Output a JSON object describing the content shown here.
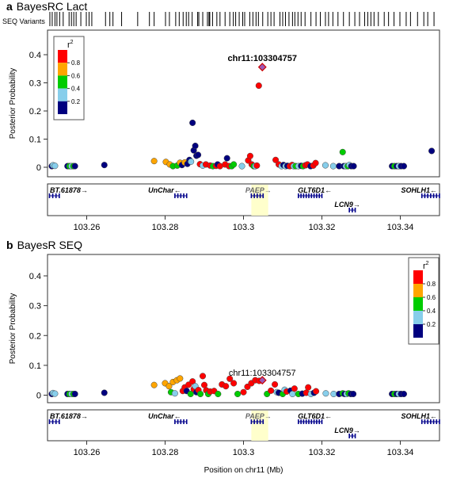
{
  "chart_data": [
    {
      "type": "scatter",
      "panel_letter": "a",
      "title": "BayesRC Lact",
      "variant_track_label": "SEQ Variants",
      "ylabel": "Posterior Probability",
      "xlabel": "",
      "xlim": [
        103.25,
        103.35
      ],
      "ylim": [
        0,
        0.45
      ],
      "yticks": [
        "0",
        "0.1",
        "0.2",
        "0.3",
        "0.4"
      ],
      "xticks": [
        "103.26",
        "103.28",
        "103.3",
        "103.32",
        "103.34"
      ],
      "legend": {
        "title": "r",
        "title_sup": "2",
        "placement": "top-left",
        "tick_labels": [
          "0.8",
          "0.6",
          "0.4",
          "0.2"
        ]
      },
      "annotation": {
        "text": "chr11:103304757",
        "x": 103.3048,
        "y": 0.356
      },
      "grid": false,
      "variant_positions": [
        103.2506,
        103.2512,
        103.2519,
        103.2524,
        103.2531,
        103.254,
        103.2555,
        103.2561,
        103.2567,
        103.2573,
        103.2585,
        103.2599,
        103.2606,
        103.2613,
        103.2648,
        103.2659,
        103.2667,
        103.2689,
        103.273,
        103.276,
        103.2772,
        103.2801,
        103.2811,
        103.2827,
        103.2836,
        103.2846,
        103.2854,
        103.286,
        103.2869,
        103.2883,
        103.2886,
        103.2896,
        103.2908,
        103.2912,
        103.2914,
        103.2921,
        103.2932,
        103.294,
        103.2953,
        103.2965,
        103.2974,
        103.298,
        103.2989,
        103.2998,
        103.3003,
        103.3016,
        103.3024,
        103.3032,
        103.3038,
        103.3049,
        103.3062,
        103.307,
        103.3078,
        103.3093,
        103.31,
        103.3107,
        103.3116,
        103.3125,
        103.3131,
        103.3139,
        103.3147,
        103.3157,
        103.3172,
        103.3185,
        103.3196,
        103.3209,
        103.3217,
        103.3228,
        103.3241,
        103.3255,
        103.327,
        103.3284,
        103.3296,
        103.3309,
        103.3317,
        103.3325,
        103.3333,
        103.3344,
        103.3359,
        103.337,
        103.3384,
        103.3399,
        103.3415,
        103.3426,
        103.3444,
        103.346,
        103.347,
        103.3486
      ],
      "points": [
        {
          "x": 103.2511,
          "y": 0.004,
          "r2": 0.1
        },
        {
          "x": 103.2514,
          "y": 0.007,
          "r2": 0.3
        },
        {
          "x": 103.2519,
          "y": 0.005,
          "r2": 0.3
        },
        {
          "x": 103.2551,
          "y": 0.004,
          "r2": 0.1
        },
        {
          "x": 103.2556,
          "y": 0.004,
          "r2": 0.5
        },
        {
          "x": 103.2561,
          "y": 0.004,
          "r2": 0.3
        },
        {
          "x": 103.2566,
          "y": 0.004,
          "r2": 0.5
        },
        {
          "x": 103.257,
          "y": 0.004,
          "r2": 0.1
        },
        {
          "x": 103.2645,
          "y": 0.008,
          "r2": 0.1
        },
        {
          "x": 103.2772,
          "y": 0.022,
          "r2": 0.7
        },
        {
          "x": 103.2802,
          "y": 0.019,
          "r2": 0.7
        },
        {
          "x": 103.2812,
          "y": 0.01,
          "r2": 0.7
        },
        {
          "x": 103.282,
          "y": 0.004,
          "r2": 0.5
        },
        {
          "x": 103.2831,
          "y": 0.006,
          "r2": 0.5
        },
        {
          "x": 103.2838,
          "y": 0.016,
          "r2": 0.7
        },
        {
          "x": 103.2843,
          "y": 0.008,
          "r2": 0.1
        },
        {
          "x": 103.285,
          "y": 0.017,
          "r2": 0.7
        },
        {
          "x": 103.2857,
          "y": 0.012,
          "r2": 0.1
        },
        {
          "x": 103.2862,
          "y": 0.026,
          "r2": 0.1
        },
        {
          "x": 103.2866,
          "y": 0.02,
          "r2": 0.3
        },
        {
          "x": 103.287,
          "y": 0.158,
          "r2": 0.1
        },
        {
          "x": 103.2873,
          "y": 0.06,
          "r2": 0.1
        },
        {
          "x": 103.2877,
          "y": 0.076,
          "r2": 0.1
        },
        {
          "x": 103.288,
          "y": 0.041,
          "r2": 0.1
        },
        {
          "x": 103.2884,
          "y": 0.044,
          "r2": 0.1
        },
        {
          "x": 103.2889,
          "y": 0.011,
          "r2": 0.9
        },
        {
          "x": 103.2896,
          "y": 0.006,
          "r2": 0.3
        },
        {
          "x": 103.2904,
          "y": 0.01,
          "r2": 0.9
        },
        {
          "x": 103.2915,
          "y": 0.006,
          "r2": 0.9
        },
        {
          "x": 103.2922,
          "y": 0.004,
          "r2": 0.5
        },
        {
          "x": 103.293,
          "y": 0.005,
          "r2": 0.9
        },
        {
          "x": 103.2934,
          "y": 0.01,
          "r2": 0.1
        },
        {
          "x": 103.294,
          "y": 0.004,
          "r2": 0.9
        },
        {
          "x": 103.2953,
          "y": 0.01,
          "r2": 0.9
        },
        {
          "x": 103.2958,
          "y": 0.032,
          "r2": 0.1
        },
        {
          "x": 103.2963,
          "y": 0.004,
          "r2": 0.9
        },
        {
          "x": 103.297,
          "y": 0.004,
          "r2": 0.5
        },
        {
          "x": 103.2975,
          "y": 0.01,
          "r2": 0.5
        },
        {
          "x": 103.2996,
          "y": 0.004,
          "r2": 0.3
        },
        {
          "x": 103.3012,
          "y": 0.024,
          "r2": 0.9
        },
        {
          "x": 103.3017,
          "y": 0.04,
          "r2": 0.9
        },
        {
          "x": 103.3021,
          "y": 0.01,
          "r2": 0.9
        },
        {
          "x": 103.3026,
          "y": 0.004,
          "r2": 0.5
        },
        {
          "x": 103.303,
          "y": 0.004,
          "r2": 0.3
        },
        {
          "x": 103.3034,
          "y": 0.006,
          "r2": 0.9
        },
        {
          "x": 103.3039,
          "y": 0.29,
          "r2": 0.9
        },
        {
          "x": 103.3048,
          "y": 0.356,
          "r2": 1.0,
          "shape": "diamond"
        },
        {
          "x": 103.3082,
          "y": 0.026,
          "r2": 0.9
        },
        {
          "x": 103.309,
          "y": 0.01,
          "r2": 0.9
        },
        {
          "x": 103.3097,
          "y": 0.004,
          "r2": 0.3
        },
        {
          "x": 103.3102,
          "y": 0.008,
          "r2": 0.1
        },
        {
          "x": 103.3107,
          "y": 0.004,
          "r2": 0.3
        },
        {
          "x": 103.3112,
          "y": 0.005,
          "r2": 0.1
        },
        {
          "x": 103.3118,
          "y": 0.004,
          "r2": 0.9
        },
        {
          "x": 103.3124,
          "y": 0.008,
          "r2": 0.9
        },
        {
          "x": 103.3128,
          "y": 0.004,
          "r2": 0.3
        },
        {
          "x": 103.3133,
          "y": 0.004,
          "r2": 0.5
        },
        {
          "x": 103.314,
          "y": 0.004,
          "r2": 0.3
        },
        {
          "x": 103.3147,
          "y": 0.005,
          "r2": 0.1
        },
        {
          "x": 103.3152,
          "y": 0.004,
          "r2": 0.5
        },
        {
          "x": 103.3158,
          "y": 0.007,
          "r2": 0.9
        },
        {
          "x": 103.3163,
          "y": 0.01,
          "r2": 0.9
        },
        {
          "x": 103.3171,
          "y": 0.004,
          "r2": 0.1
        },
        {
          "x": 103.3178,
          "y": 0.006,
          "r2": 0.9
        },
        {
          "x": 103.3184,
          "y": 0.015,
          "r2": 0.9
        },
        {
          "x": 103.3209,
          "y": 0.007,
          "r2": 0.3
        },
        {
          "x": 103.3229,
          "y": 0.004,
          "r2": 0.3
        },
        {
          "x": 103.3244,
          "y": 0.004,
          "r2": 0.1
        },
        {
          "x": 103.3253,
          "y": 0.054,
          "r2": 0.5
        },
        {
          "x": 103.3256,
          "y": 0.004,
          "r2": 0.1
        },
        {
          "x": 103.3261,
          "y": 0.004,
          "r2": 0.3
        },
        {
          "x": 103.3266,
          "y": 0.004,
          "r2": 0.5
        },
        {
          "x": 103.327,
          "y": 0.008,
          "r2": 0.3
        },
        {
          "x": 103.3275,
          "y": 0.004,
          "r2": 0.1
        },
        {
          "x": 103.3281,
          "y": 0.004,
          "r2": 0.1
        },
        {
          "x": 103.3379,
          "y": 0.004,
          "r2": 0.1
        },
        {
          "x": 103.3385,
          "y": 0.004,
          "r2": 0.5
        },
        {
          "x": 103.3391,
          "y": 0.004,
          "r2": 0.1
        },
        {
          "x": 103.3396,
          "y": 0.004,
          "r2": 0.3
        },
        {
          "x": 103.3402,
          "y": 0.004,
          "r2": 0.1
        },
        {
          "x": 103.3409,
          "y": 0.004,
          "r2": 0.1
        },
        {
          "x": 103.348,
          "y": 0.058,
          "r2": 0.1
        }
      ],
      "genes": [
        {
          "name": "BT.61878",
          "arrow": "→",
          "start": 103.2505,
          "end": 103.253,
          "row": 0
        },
        {
          "name": "UnChar",
          "arrow": "←",
          "start": 103.2825,
          "end": 103.2855,
          "row": 0
        },
        {
          "name": "PAEP",
          "arrow": "→",
          "start": 103.302,
          "end": 103.305,
          "row": 0,
          "highlight": true
        },
        {
          "name": "GLT6D1",
          "arrow": "←",
          "start": 103.314,
          "end": 103.32,
          "row": 0
        },
        {
          "name": "LCN9",
          "arrow": "→",
          "start": 103.327,
          "end": 103.3285,
          "row": 1
        },
        {
          "name": "SOHLH1",
          "arrow": "←",
          "start": 103.3455,
          "end": 103.35,
          "row": 0
        }
      ]
    },
    {
      "type": "scatter",
      "panel_letter": "b",
      "title": "BayesR SEQ",
      "ylabel": "Posterior Probability",
      "xlabel": "Position on chr11 (Mb)",
      "xlim": [
        103.25,
        103.35
      ],
      "ylim": [
        0,
        0.45
      ],
      "yticks": [
        "0",
        "0.1",
        "0.2",
        "0.3",
        "0.4"
      ],
      "xticks": [
        "103.26",
        "103.28",
        "103.3",
        "103.32",
        "103.34"
      ],
      "legend": {
        "title": "r",
        "title_sup": "2",
        "placement": "top-right",
        "tick_labels": [
          "0.8",
          "0.6",
          "0.4",
          "0.2"
        ]
      },
      "annotation": {
        "text": "chr11:103304757",
        "x": 103.3048,
        "y": 0.05
      },
      "grid": false,
      "points": [
        {
          "x": 103.2511,
          "y": 0.004,
          "r2": 0.1
        },
        {
          "x": 103.2514,
          "y": 0.007,
          "r2": 0.3
        },
        {
          "x": 103.2519,
          "y": 0.005,
          "r2": 0.3
        },
        {
          "x": 103.2551,
          "y": 0.004,
          "r2": 0.1
        },
        {
          "x": 103.2556,
          "y": 0.004,
          "r2": 0.5
        },
        {
          "x": 103.2561,
          "y": 0.004,
          "r2": 0.3
        },
        {
          "x": 103.2566,
          "y": 0.004,
          "r2": 0.5
        },
        {
          "x": 103.257,
          "y": 0.004,
          "r2": 0.1
        },
        {
          "x": 103.2645,
          "y": 0.008,
          "r2": 0.1
        },
        {
          "x": 103.2772,
          "y": 0.034,
          "r2": 0.7
        },
        {
          "x": 103.28,
          "y": 0.04,
          "r2": 0.7
        },
        {
          "x": 103.281,
          "y": 0.03,
          "r2": 0.7
        },
        {
          "x": 103.282,
          "y": 0.044,
          "r2": 0.7
        },
        {
          "x": 103.283,
          "y": 0.05,
          "r2": 0.7
        },
        {
          "x": 103.2838,
          "y": 0.056,
          "r2": 0.7
        },
        {
          "x": 103.2815,
          "y": 0.01,
          "r2": 0.5
        },
        {
          "x": 103.2825,
          "y": 0.006,
          "r2": 0.3
        },
        {
          "x": 103.2845,
          "y": 0.014,
          "r2": 0.9
        },
        {
          "x": 103.285,
          "y": 0.026,
          "r2": 0.9
        },
        {
          "x": 103.2855,
          "y": 0.014,
          "r2": 0.1
        },
        {
          "x": 103.286,
          "y": 0.035,
          "r2": 0.9
        },
        {
          "x": 103.2865,
          "y": 0.004,
          "r2": 0.5
        },
        {
          "x": 103.287,
          "y": 0.046,
          "r2": 0.9
        },
        {
          "x": 103.2873,
          "y": 0.02,
          "r2": 0.9
        },
        {
          "x": 103.2877,
          "y": 0.03,
          "r2": 0.3
        },
        {
          "x": 103.288,
          "y": 0.01,
          "r2": 0.1
        },
        {
          "x": 103.2885,
          "y": 0.017,
          "r2": 0.9
        },
        {
          "x": 103.289,
          "y": 0.004,
          "r2": 0.5
        },
        {
          "x": 103.2896,
          "y": 0.064,
          "r2": 0.9
        },
        {
          "x": 103.29,
          "y": 0.034,
          "r2": 0.9
        },
        {
          "x": 103.2905,
          "y": 0.016,
          "r2": 0.9
        },
        {
          "x": 103.291,
          "y": 0.004,
          "r2": 0.5
        },
        {
          "x": 103.2915,
          "y": 0.012,
          "r2": 0.9
        },
        {
          "x": 103.2925,
          "y": 0.014,
          "r2": 0.9
        },
        {
          "x": 103.2935,
          "y": 0.004,
          "r2": 0.5
        },
        {
          "x": 103.2945,
          "y": 0.036,
          "r2": 0.9
        },
        {
          "x": 103.2955,
          "y": 0.03,
          "r2": 0.9
        },
        {
          "x": 103.2965,
          "y": 0.055,
          "r2": 0.9
        },
        {
          "x": 103.2975,
          "y": 0.04,
          "r2": 0.9
        },
        {
          "x": 103.2985,
          "y": 0.004,
          "r2": 0.5
        },
        {
          "x": 103.3,
          "y": 0.01,
          "r2": 0.9
        },
        {
          "x": 103.301,
          "y": 0.028,
          "r2": 0.9
        },
        {
          "x": 103.302,
          "y": 0.04,
          "r2": 0.9
        },
        {
          "x": 103.303,
          "y": 0.05,
          "r2": 0.9
        },
        {
          "x": 103.304,
          "y": 0.048,
          "r2": 0.9
        },
        {
          "x": 103.3048,
          "y": 0.05,
          "r2": 1.0,
          "shape": "diamond"
        },
        {
          "x": 103.306,
          "y": 0.004,
          "r2": 0.5
        },
        {
          "x": 103.307,
          "y": 0.015,
          "r2": 0.9
        },
        {
          "x": 103.308,
          "y": 0.036,
          "r2": 0.9
        },
        {
          "x": 103.3085,
          "y": 0.01,
          "r2": 0.3
        },
        {
          "x": 103.309,
          "y": 0.008,
          "r2": 0.1
        },
        {
          "x": 103.31,
          "y": 0.004,
          "r2": 0.5
        },
        {
          "x": 103.3105,
          "y": 0.018,
          "r2": 0.3
        },
        {
          "x": 103.311,
          "y": 0.012,
          "r2": 0.9
        },
        {
          "x": 103.312,
          "y": 0.015,
          "r2": 0.1
        },
        {
          "x": 103.3125,
          "y": 0.004,
          "r2": 0.3
        },
        {
          "x": 103.313,
          "y": 0.022,
          "r2": 0.9
        },
        {
          "x": 103.314,
          "y": 0.004,
          "r2": 0.5
        },
        {
          "x": 103.315,
          "y": 0.005,
          "r2": 0.1
        },
        {
          "x": 103.316,
          "y": 0.008,
          "r2": 0.9
        },
        {
          "x": 103.3165,
          "y": 0.026,
          "r2": 0.9
        },
        {
          "x": 103.3172,
          "y": 0.004,
          "r2": 0.3
        },
        {
          "x": 103.318,
          "y": 0.008,
          "r2": 0.1
        },
        {
          "x": 103.3185,
          "y": 0.013,
          "r2": 0.9
        },
        {
          "x": 103.321,
          "y": 0.006,
          "r2": 0.3
        },
        {
          "x": 103.323,
          "y": 0.004,
          "r2": 0.3
        },
        {
          "x": 103.3244,
          "y": 0.004,
          "r2": 0.1
        },
        {
          "x": 103.3253,
          "y": 0.006,
          "r2": 0.5
        },
        {
          "x": 103.3258,
          "y": 0.004,
          "r2": 0.1
        },
        {
          "x": 103.3263,
          "y": 0.004,
          "r2": 0.3
        },
        {
          "x": 103.3268,
          "y": 0.006,
          "r2": 0.5
        },
        {
          "x": 103.3274,
          "y": 0.004,
          "r2": 0.1
        },
        {
          "x": 103.328,
          "y": 0.004,
          "r2": 0.1
        },
        {
          "x": 103.3379,
          "y": 0.004,
          "r2": 0.1
        },
        {
          "x": 103.3385,
          "y": 0.004,
          "r2": 0.5
        },
        {
          "x": 103.3391,
          "y": 0.004,
          "r2": 0.1
        },
        {
          "x": 103.3396,
          "y": 0.004,
          "r2": 0.3
        },
        {
          "x": 103.3402,
          "y": 0.004,
          "r2": 0.1
        },
        {
          "x": 103.3409,
          "y": 0.004,
          "r2": 0.1
        }
      ],
      "genes": [
        {
          "name": "BT.61878",
          "arrow": "→",
          "start": 103.2505,
          "end": 103.253,
          "row": 0
        },
        {
          "name": "UnChar",
          "arrow": "←",
          "start": 103.2825,
          "end": 103.2855,
          "row": 0
        },
        {
          "name": "PAEP",
          "arrow": "→",
          "start": 103.302,
          "end": 103.305,
          "row": 0,
          "highlight": true
        },
        {
          "name": "GLT6D1",
          "arrow": "←",
          "start": 103.314,
          "end": 103.32,
          "row": 0
        },
        {
          "name": "LCN9",
          "arrow": "→",
          "start": 103.327,
          "end": 103.3285,
          "row": 1
        },
        {
          "name": "SOHLH1",
          "arrow": "←",
          "start": 103.3455,
          "end": 103.35,
          "row": 0
        }
      ]
    }
  ],
  "colors": {
    "r2_0_2": "#00007f",
    "r2_2_4": "#87ceeb",
    "r2_4_6": "#00cc00",
    "r2_6_8": "#ffa500",
    "r2_8_1": "#ff0000",
    "lead": "#9b59b6",
    "highlight": "#ffffcc",
    "gene": "#00008b"
  }
}
